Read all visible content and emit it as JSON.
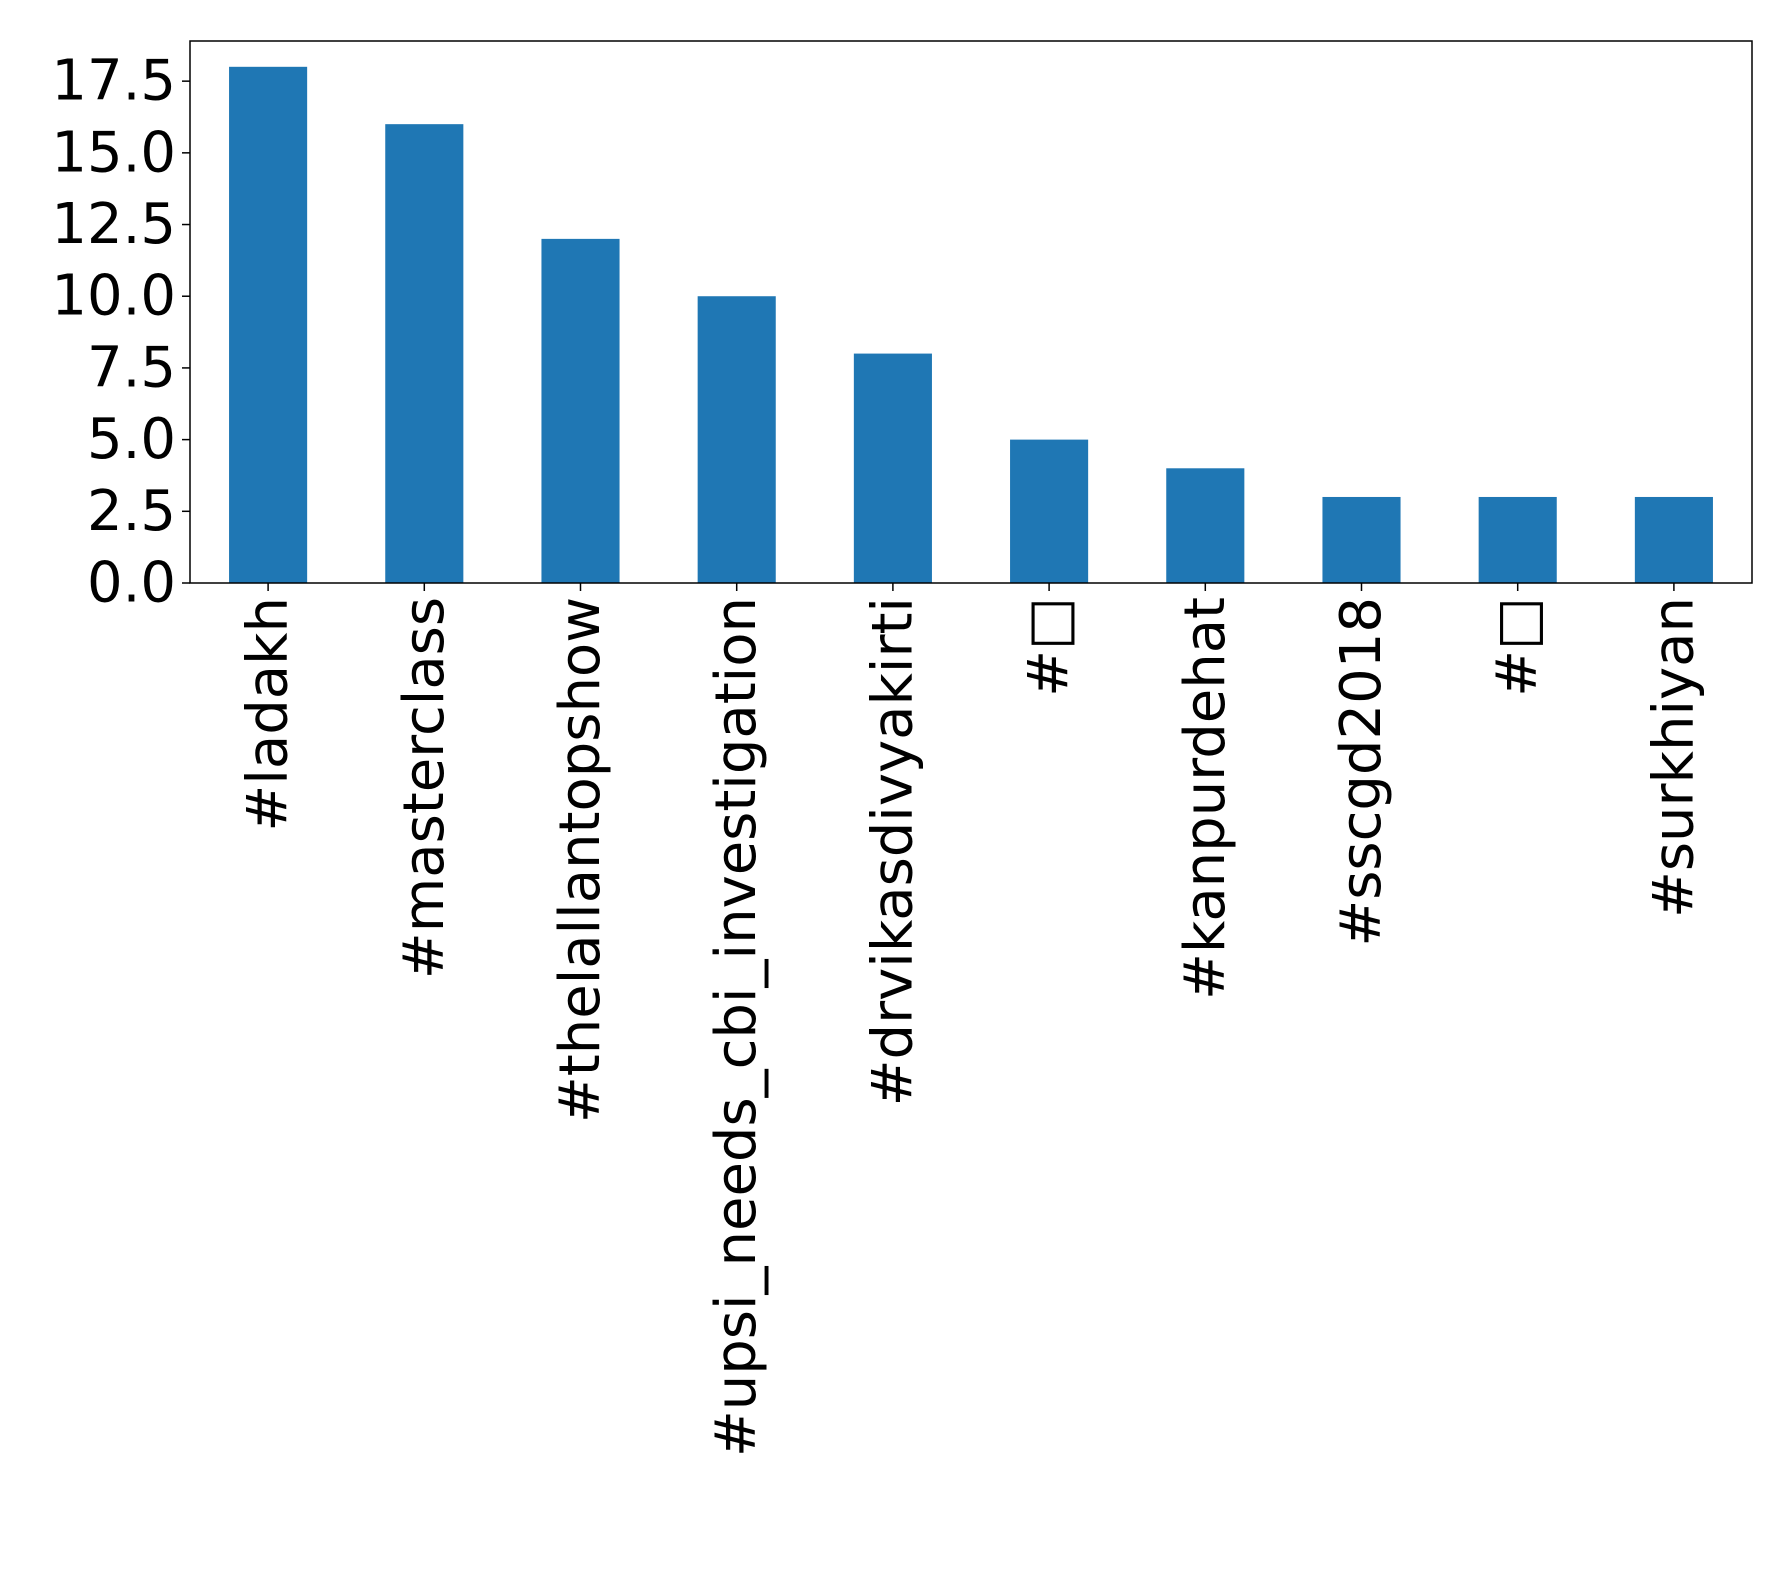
{
  "chart_data": {
    "type": "bar",
    "title": "",
    "xlabel": "",
    "ylabel": "",
    "categories": [
      "#ladakh",
      "#masterclass",
      "#thelallantopshow",
      "#upsi_needs_cbi_investigation",
      "#drvikasdivyakirti",
      "#□",
      "#kanpurdehat",
      "#sscgd2018",
      "#□",
      "#surkhiyan"
    ],
    "values": [
      18,
      16,
      12,
      10,
      8,
      5,
      4,
      3,
      3,
      3
    ],
    "ylim": [
      0,
      18.9
    ],
    "yticks": [
      0.0,
      2.5,
      5.0,
      7.5,
      10.0,
      12.5,
      15.0,
      17.5
    ],
    "ytick_labels": [
      "0.0",
      "2.5",
      "5.0",
      "7.5",
      "10.0",
      "12.5",
      "15.0",
      "17.5"
    ],
    "bar_color": "#1f77b4",
    "grid": false,
    "legend": false
  }
}
